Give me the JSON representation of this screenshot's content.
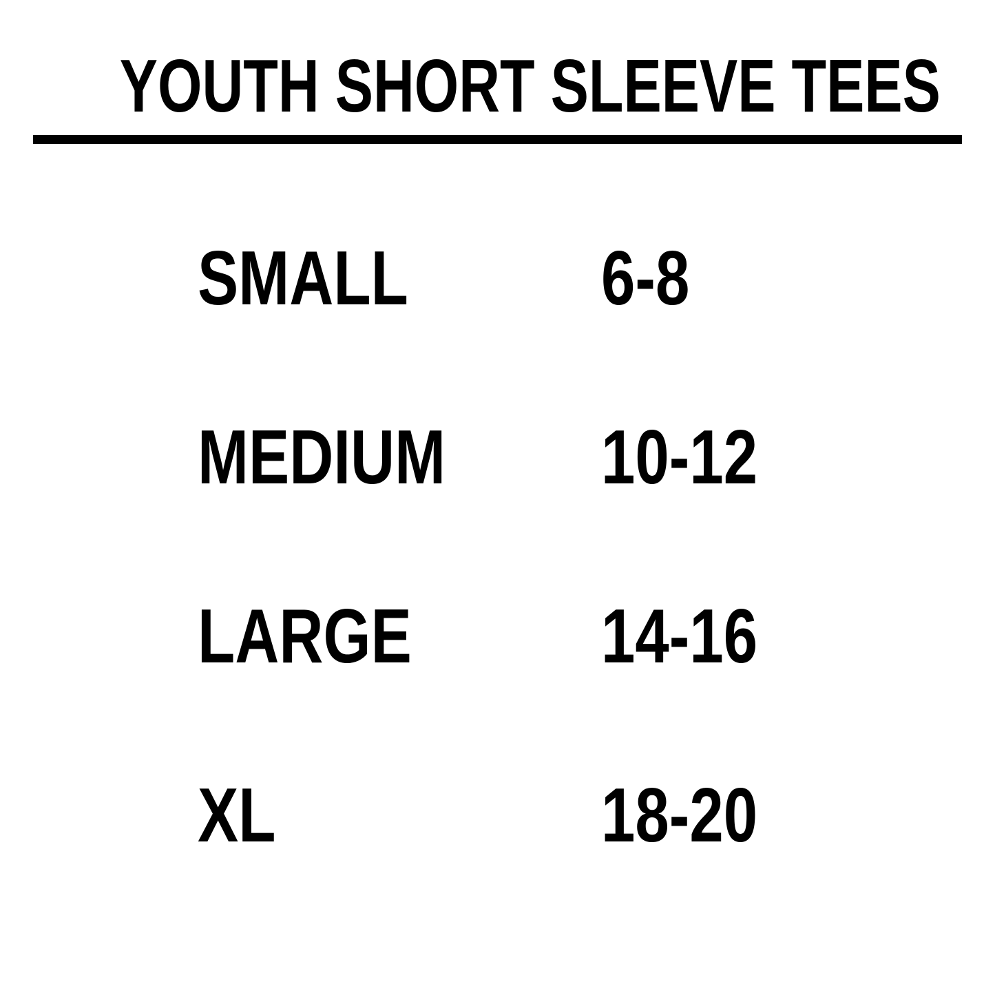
{
  "title": "YOUTH SHORT SLEEVE TEES",
  "rows": [
    {
      "size": "SMALL",
      "ages": "6-8"
    },
    {
      "size": "MEDIUM",
      "ages": "10-12"
    },
    {
      "size": "LARGE",
      "ages": "14-16"
    },
    {
      "size": "XL",
      "ages": "18-20"
    }
  ]
}
